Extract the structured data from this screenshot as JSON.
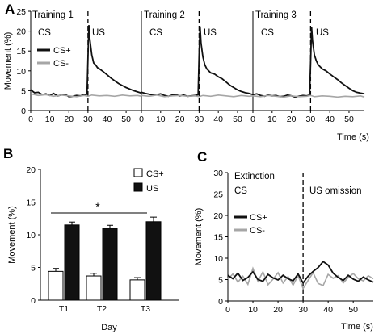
{
  "panels": [
    "A",
    "B",
    "C"
  ],
  "colors": {
    "cs_plus": "#111111",
    "cs_minus": "#a6a6a6",
    "us_bar": "#111111",
    "csplus_bar": "#ffffff"
  },
  "chart_data": [
    {
      "panel": "A",
      "type": "line",
      "ylabel": "Movement (%)",
      "xlabel": "Time (s)",
      "ylim": [
        0,
        25
      ],
      "yticks": [
        "0",
        "5",
        "10",
        "15",
        "20",
        "25"
      ],
      "xlim": [
        0,
        58
      ],
      "xticks": [
        "0",
        "10",
        "20",
        "30",
        "40",
        "50",
        "0",
        "10",
        "20",
        "30",
        "40",
        "50",
        "0",
        "10",
        "20",
        "30",
        "40",
        "50"
      ],
      "training_labels": [
        "Training 1",
        "Training 2",
        "Training 3"
      ],
      "phase_labels": [
        "CS",
        "US",
        "CS",
        "US",
        "CS",
        "US"
      ],
      "legend": [
        "CS+",
        "CS-"
      ],
      "session_boundary_times": [
        0,
        58
      ],
      "us_onset": 30,
      "series": [
        {
          "name": "CS+",
          "sessions": [
            {
              "training": "Training 1",
              "x": [
                0,
                2,
                4,
                6,
                8,
                10,
                12,
                14,
                16,
                18,
                20,
                22,
                24,
                26,
                28,
                29.5,
                30,
                30.5,
                31,
                32,
                33,
                34,
                35,
                36,
                38,
                40,
                42,
                44,
                46,
                48,
                50,
                52,
                54,
                56,
                58
              ],
              "y": [
                5.2,
                4.5,
                4.6,
                4.0,
                4.2,
                3.8,
                4.3,
                3.7,
                3.9,
                4.1,
                3.5,
                3.6,
                3.8,
                3.7,
                4.0,
                4.1,
                13.5,
                21.5,
                18,
                14,
                12,
                11.5,
                10.8,
                10.5,
                9.8,
                9,
                8.2,
                7.5,
                6.8,
                6.3,
                5.8,
                5.4,
                5,
                4.7,
                4.4
              ]
            },
            {
              "training": "Training 2",
              "x": [
                0,
                2,
                4,
                6,
                8,
                10,
                12,
                14,
                16,
                18,
                20,
                22,
                24,
                26,
                28,
                29.5,
                30,
                30.5,
                31,
                32,
                33,
                34,
                35,
                36,
                38,
                40,
                42,
                44,
                46,
                48,
                50,
                52,
                54,
                56,
                58
              ],
              "y": [
                4.6,
                4.3,
                4.1,
                3.9,
                4.0,
                4.2,
                3.8,
                3.6,
                3.9,
                4.0,
                3.7,
                3.9,
                3.6,
                3.7,
                3.8,
                4.0,
                14,
                21.2,
                17,
                13.5,
                11.5,
                10.5,
                10,
                9.5,
                9.2,
                8.5,
                8,
                7.2,
                6.4,
                5.8,
                5.2,
                4.8,
                4.5,
                4.3,
                4.0
              ]
            },
            {
              "training": "Training 3",
              "x": [
                0,
                2,
                4,
                6,
                8,
                10,
                12,
                14,
                16,
                18,
                20,
                22,
                24,
                26,
                28,
                29.5,
                30,
                30.5,
                31,
                32,
                33,
                34,
                35,
                36,
                38,
                40,
                42,
                44,
                46,
                48,
                50,
                52,
                54,
                56,
                58
              ],
              "y": [
                4.0,
                4.2,
                3.8,
                3.6,
                3.9,
                3.7,
                3.8,
                3.5,
                3.6,
                3.9,
                3.7,
                3.4,
                3.6,
                3.8,
                3.7,
                3.9,
                12,
                21,
                17.5,
                14,
                12.5,
                11.5,
                11,
                10.5,
                10,
                9.2,
                8.5,
                7.8,
                7,
                6.3,
                5.6,
                5,
                4.6,
                4.4,
                4.2
              ]
            }
          ]
        },
        {
          "name": "CS-",
          "sessions": [
            {
              "training": "Training 1",
              "x": [
                0,
                4,
                8,
                12,
                16,
                20,
                24,
                28,
                30,
                32,
                36,
                40,
                44,
                48,
                52,
                56,
                58
              ],
              "y": [
                4.2,
                3.8,
                4.0,
                3.6,
                3.9,
                3.7,
                3.5,
                3.8,
                3.6,
                3.9,
                3.7,
                3.8,
                3.6,
                3.9,
                3.7,
                3.8,
                3.6
              ]
            },
            {
              "training": "Training 2",
              "x": [
                0,
                4,
                8,
                12,
                16,
                20,
                24,
                28,
                30,
                32,
                36,
                40,
                44,
                48,
                52,
                56,
                58
              ],
              "y": [
                3.8,
                3.6,
                3.9,
                3.5,
                3.7,
                3.8,
                3.6,
                3.7,
                3.5,
                3.8,
                3.6,
                3.9,
                3.7,
                3.5,
                3.8,
                3.6,
                3.7
              ]
            },
            {
              "training": "Training 3",
              "x": [
                0,
                4,
                8,
                12,
                16,
                20,
                24,
                28,
                30,
                32,
                36,
                40,
                44,
                48,
                52,
                56,
                58
              ],
              "y": [
                3.7,
                3.5,
                3.8,
                3.6,
                3.4,
                3.7,
                3.5,
                3.6,
                3.8,
                3.5,
                3.7,
                3.6,
                3.4,
                3.6,
                3.5,
                3.7,
                3.4
              ]
            }
          ]
        }
      ]
    },
    {
      "panel": "B",
      "type": "bar",
      "ylabel": "Movement (%)",
      "xlabel": "Day",
      "categories": [
        "T1",
        "T2",
        "T3"
      ],
      "ylim": [
        0,
        20
      ],
      "yticks": [
        "0",
        "5",
        "10",
        "15",
        "20"
      ],
      "legend": [
        "CS+",
        "US"
      ],
      "annotation": "*",
      "series": [
        {
          "name": "CS+",
          "values": [
            4.4,
            3.7,
            3.1
          ],
          "errors": [
            0.45,
            0.4,
            0.35
          ]
        },
        {
          "name": "US",
          "values": [
            11.5,
            11.0,
            12.0
          ],
          "errors": [
            0.45,
            0.45,
            0.7
          ]
        }
      ]
    },
    {
      "panel": "C",
      "type": "line",
      "ylabel": "Movement (%)",
      "xlabel": "Time (s)",
      "ylim": [
        0,
        30
      ],
      "yticks": [
        "0",
        "5",
        "10",
        "15",
        "20",
        "25",
        "30"
      ],
      "xlim": [
        0,
        58
      ],
      "xticks": [
        "0",
        "10",
        "20",
        "30",
        "40",
        "50"
      ],
      "phase_labels": [
        "Extinction",
        "CS",
        "US omission"
      ],
      "legend": [
        "CS+",
        "CS-"
      ],
      "us_onset": 30,
      "series": [
        {
          "name": "CS+",
          "x": [
            0,
            2,
            4,
            6,
            8,
            10,
            12,
            14,
            16,
            18,
            20,
            22,
            24,
            26,
            28,
            30,
            32,
            34,
            36,
            38,
            40,
            42,
            44,
            46,
            48,
            50,
            52,
            54,
            56,
            58
          ],
          "y": [
            6,
            5.2,
            6.5,
            4.8,
            5.5,
            6.8,
            5,
            4.6,
            6.2,
            5.4,
            4.9,
            6,
            5.2,
            4.7,
            6.3,
            4.2,
            5.8,
            6.9,
            7.8,
            9.2,
            8.4,
            6.5,
            5.5,
            4.8,
            6,
            5.1,
            4.6,
            5.6,
            4.9,
            4.4
          ]
        },
        {
          "name": "CS-",
          "x": [
            0,
            2,
            4,
            6,
            8,
            10,
            12,
            14,
            16,
            18,
            20,
            22,
            24,
            26,
            28,
            30,
            32,
            34,
            36,
            38,
            40,
            42,
            44,
            46,
            48,
            50,
            52,
            54,
            56,
            58
          ],
          "y": [
            5.1,
            6.3,
            4.4,
            5.8,
            3.9,
            7.6,
            4.6,
            6.8,
            3.8,
            5.1,
            6.6,
            4.2,
            5.7,
            3.7,
            5.9,
            2.9,
            4.8,
            6.6,
            4.1,
            3.6,
            6.2,
            5.3,
            5.9,
            4.2,
            5.5,
            6.4,
            5.2,
            4.7,
            5.9,
            5.2
          ]
        }
      ]
    }
  ]
}
